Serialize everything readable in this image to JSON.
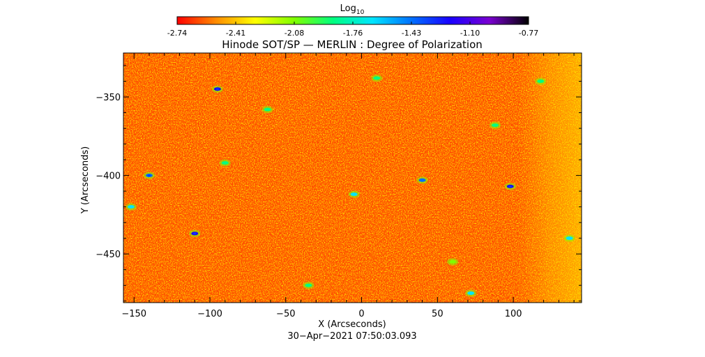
{
  "colorbar": {
    "title_main": "Log",
    "title_sub": "10",
    "tick_labels": [
      "-2.74",
      "-2.41",
      "-2.08",
      "-1.76",
      "-1.43",
      "-1.10",
      "-0.77"
    ],
    "range": [
      -2.74,
      -0.77
    ],
    "colors": [
      "#ff0000",
      "#ff8c00",
      "#ffff00",
      "#80ff00",
      "#00ff80",
      "#00e5ff",
      "#0070ff",
      "#1a00ff",
      "#7a00d0",
      "#000000"
    ]
  },
  "chart_data": {
    "type": "heatmap",
    "title": "Hinode SOT/SP — MERLIN : Degree of Polarization",
    "xlabel": "X (Arcseconds)",
    "ylabel": "Y (Arcseconds)",
    "xlim": [
      -157,
      145
    ],
    "ylim": [
      -481,
      -322
    ],
    "x_ticks": [
      -150,
      -100,
      -50,
      0,
      50,
      100
    ],
    "y_ticks": [
      -350,
      -400,
      -450
    ],
    "x_tick_labels": [
      "−150",
      "−100",
      "−50",
      "0",
      "50",
      "100"
    ],
    "y_tick_labels": [
      "−350",
      "−400",
      "−450"
    ],
    "z_scale": "log10",
    "z_range": [
      -2.74,
      -0.77
    ],
    "grid": false,
    "features": [
      {
        "x": -95,
        "y": -345,
        "value": -1.3
      },
      {
        "x": -140,
        "y": -400,
        "value": -1.4
      },
      {
        "x": -110,
        "y": -437,
        "value": -1.2
      },
      {
        "x": 98,
        "y": -407,
        "value": -1.1
      },
      {
        "x": 40,
        "y": -403,
        "value": -1.5
      },
      {
        "x": -5,
        "y": -412,
        "value": -1.6
      },
      {
        "x": 10,
        "y": -338,
        "value": -1.8
      },
      {
        "x": -152,
        "y": -420,
        "value": -1.6
      },
      {
        "x": 137,
        "y": -440,
        "value": -1.7
      },
      {
        "x": -90,
        "y": -392,
        "value": -1.8
      },
      {
        "x": 72,
        "y": -475,
        "value": -1.6
      },
      {
        "x": 88,
        "y": -368,
        "value": -1.9
      },
      {
        "x": -62,
        "y": -358,
        "value": -1.9
      },
      {
        "x": 118,
        "y": -340,
        "value": -1.8
      },
      {
        "x": 60,
        "y": -455,
        "value": -2.0
      },
      {
        "x": -35,
        "y": -470,
        "value": -1.9
      }
    ]
  },
  "footer": {
    "timestamp": "30−Apr−2021 07:50:03.093"
  }
}
